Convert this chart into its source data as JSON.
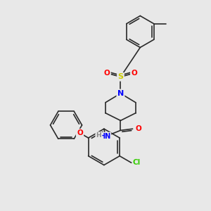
{
  "background_color": "#e8e8e8",
  "bond_color": "#2a2a2a",
  "atom_colors": {
    "N": "#0000ff",
    "O": "#ff0000",
    "S": "#cccc00",
    "Cl": "#33cc00",
    "H": "#888888",
    "C": "#2a2a2a"
  },
  "figsize": [
    3.0,
    3.0
  ],
  "dpi": 100
}
